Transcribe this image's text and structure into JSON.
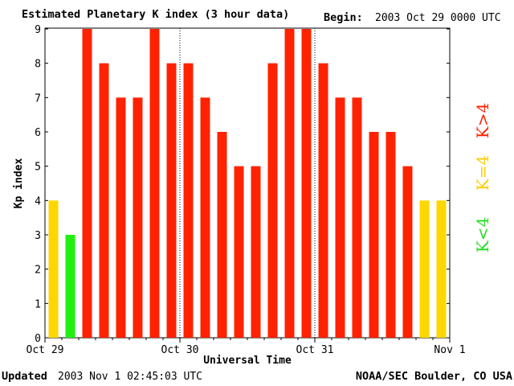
{
  "header": {
    "title": "Estimated Planetary K index (3 hour data)",
    "begin_label": "Begin:",
    "begin_value": "2003 Oct 29 0000 UTC"
  },
  "footer": {
    "updated_label": "Updated",
    "updated_value": "2003 Nov  1 02:45:03 UTC",
    "source": "NOAA/SEC Boulder, CO USA"
  },
  "legend": {
    "items": [
      {
        "label": "K<4",
        "color": "#22dd22"
      },
      {
        "label": "K=4",
        "color": "#ffcc00"
      },
      {
        "label": "K>4",
        "color": "#ff2200"
      }
    ]
  },
  "colors": {
    "low": "#22ee11",
    "equal": "#ffd700",
    "high": "#ff2200"
  },
  "chart_data": {
    "type": "bar",
    "title": "Estimated Planetary K index (3 hour data)",
    "xlabel": "Universal Time",
    "ylabel": "Kp index",
    "ylim": [
      0,
      9
    ],
    "yticks": [
      0,
      1,
      2,
      3,
      4,
      5,
      6,
      7,
      8,
      9
    ],
    "xticks": [
      {
        "label": "Oct 29",
        "slot": 0
      },
      {
        "label": "Oct 30",
        "slot": 8
      },
      {
        "label": "Oct 31",
        "slot": 16
      },
      {
        "label": "Nov 1",
        "slot": 24
      }
    ],
    "day_dividers": [
      8,
      16
    ],
    "values": [
      4,
      3,
      9,
      8,
      7,
      7,
      9,
      8,
      8,
      7,
      6,
      5,
      5,
      8,
      9,
      9,
      8,
      7,
      7,
      6,
      6,
      5,
      4,
      4
    ]
  }
}
